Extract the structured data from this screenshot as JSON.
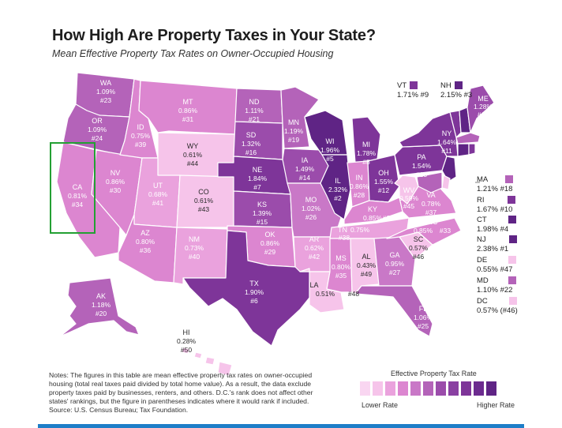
{
  "title": "How High Are Property Taxes in Your State?",
  "subtitle": "Mean Effective Property Tax Rates on Owner-Occupied Housing",
  "colors": {
    "level1": "#f6c4ea",
    "level2": "#eaa2dd",
    "level3": "#dc86d0",
    "level4": "#c978c7",
    "level5": "#b463b9",
    "level6": "#9b4cab",
    "level7": "#7e3599",
    "level8": "#5f2485",
    "highlight": "#23a033",
    "rule": "#1e7ec8"
  },
  "states": {
    "WA": {
      "abbr": "WA",
      "rate": "1.09%",
      "rank": "#23"
    },
    "OR": {
      "abbr": "OR",
      "rate": "1.09%",
      "rank": "#24"
    },
    "CA": {
      "abbr": "CA",
      "rate": "0.81%",
      "rank": "#34"
    },
    "NV": {
      "abbr": "NV",
      "rate": "0.86%",
      "rank": "#30"
    },
    "ID": {
      "abbr": "ID",
      "rate": "0.75%",
      "rank": "#39"
    },
    "MT": {
      "abbr": "MT",
      "rate": "0.86%",
      "rank": "#31"
    },
    "WY": {
      "abbr": "WY",
      "rate": "0.61%",
      "rank": "#44"
    },
    "UT": {
      "abbr": "UT",
      "rate": "0.68%",
      "rank": "#41"
    },
    "AZ": {
      "abbr": "AZ",
      "rate": "0.80%",
      "rank": "#36"
    },
    "CO": {
      "abbr": "CO",
      "rate": "0.61%",
      "rank": "#43"
    },
    "NM": {
      "abbr": "NM",
      "rate": "0.73%",
      "rank": "#40"
    },
    "ND": {
      "abbr": "ND",
      "rate": "1.11%",
      "rank": "#21"
    },
    "SD": {
      "abbr": "SD",
      "rate": "1.32%",
      "rank": "#16"
    },
    "NE": {
      "abbr": "NE",
      "rate": "1.84%",
      "rank": "#7"
    },
    "KS": {
      "abbr": "KS",
      "rate": "1.39%",
      "rank": "#15"
    },
    "OK": {
      "abbr": "OK",
      "rate": "0.86%",
      "rank": "#29"
    },
    "TX": {
      "abbr": "TX",
      "rate": "1.90%",
      "rank": "#6"
    },
    "MN": {
      "abbr": "MN",
      "rate": "1.19%",
      "rank": "#19"
    },
    "IA": {
      "abbr": "IA",
      "rate": "1.49%",
      "rank": "#14"
    },
    "MO": {
      "abbr": "MO",
      "rate": "1.02%",
      "rank": "#26"
    },
    "AR": {
      "abbr": "AR",
      "rate": "0.62%",
      "rank": "#42"
    },
    "LA": {
      "abbr": "LA",
      "rate": "0.51%",
      "rank": "#48"
    },
    "WI": {
      "abbr": "WI",
      "rate": "1.96%",
      "rank": "#5"
    },
    "IL": {
      "abbr": "IL",
      "rate": "2.32%",
      "rank": "#2"
    },
    "MI": {
      "abbr": "MI",
      "rate": "1.78%",
      "rank": "#8"
    },
    "IN": {
      "abbr": "IN",
      "rate": "0.86%",
      "rank": "#28"
    },
    "OH": {
      "abbr": "OH",
      "rate": "1.55%",
      "rank": "#12"
    },
    "KY": {
      "abbr": "KY",
      "rate": "0.85%",
      "rank": "#32"
    },
    "TN": {
      "abbr": "TN",
      "rate": "0.75%",
      "rank": "#38"
    },
    "MS": {
      "abbr": "MS",
      "rate": "0.80%",
      "rank": "#35"
    },
    "AL": {
      "abbr": "AL",
      "rate": "0.43%",
      "rank": "#49"
    },
    "GA": {
      "abbr": "GA",
      "rate": "0.95%",
      "rank": "#27"
    },
    "FL": {
      "abbr": "FL",
      "rate": "1.06%",
      "rank": "#25"
    },
    "SC": {
      "abbr": "SC",
      "rate": "0.57%",
      "rank": "#46"
    },
    "NC": {
      "abbr": "NC",
      "rate": "0.85%",
      "rank": "#33"
    },
    "VA": {
      "abbr": "VA",
      "rate": "0.78%",
      "rank": "#37"
    },
    "WV": {
      "abbr": "WV",
      "rate": "0.59%",
      "rank": "#45"
    },
    "PA": {
      "abbr": "PA",
      "rate": "1.54%",
      "rank": "#13"
    },
    "NY": {
      "abbr": "NY",
      "rate": "1.64%",
      "rank": "#11"
    },
    "ME": {
      "abbr": "ME",
      "rate": "1.28%",
      "rank": "#17"
    },
    "AK": {
      "abbr": "AK",
      "rate": "1.18%",
      "rank": "#20"
    },
    "HI": {
      "abbr": "HI",
      "rate": "0.28%",
      "rank": "#50"
    }
  },
  "callouts": {
    "VT": {
      "abbr": "VT",
      "value": "1.71% #9"
    },
    "NH": {
      "abbr": "NH",
      "value": "2.15% #3"
    },
    "MA": {
      "abbr": "MA",
      "value": "1.21% #18"
    },
    "RI": {
      "abbr": "RI",
      "value": "1.67% #10"
    },
    "CT": {
      "abbr": "CT",
      "value": "1.98% #4"
    },
    "NJ": {
      "abbr": "NJ",
      "value": "2.38% #1"
    },
    "DE": {
      "abbr": "DE",
      "value": "0.55% #47"
    },
    "MD": {
      "abbr": "MD",
      "value": "1.10% #22"
    },
    "DC": {
      "abbr": "DC",
      "value": "0.57% (#46)"
    }
  },
  "notes": "Notes: The figures in this table are mean effective property tax rates on owner-occupied housing (total real taxes paid divided by total home value). As a result, the data exclude property taxes paid by businesses, renters, and others. D.C.'s rank does not affect other states' rankings, but the figure in parentheses indicates where it would rank if included.",
  "source": "Source: U.S. Census Bureau; Tax Foundation.",
  "legend": {
    "title": "Effective Property Tax Rate",
    "low": "Lower Rate",
    "high": "Higher Rate"
  }
}
